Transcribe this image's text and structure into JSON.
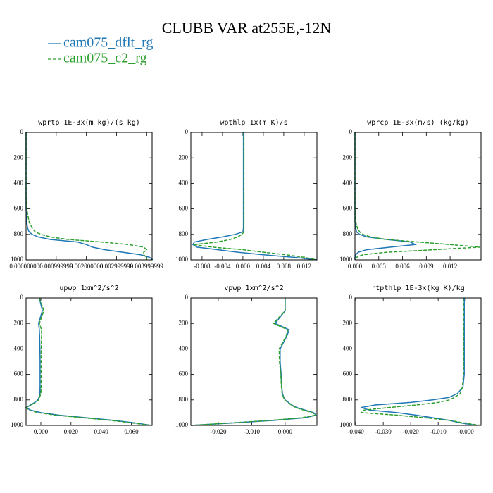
{
  "title": "CLUBB VAR at255E,-12N",
  "chart_data": [
    {
      "type": "line",
      "title": "wprtp  1E-3x(m kg)/(s kg)",
      "levels": [
        0,
        100,
        200,
        250,
        300,
        400,
        500,
        600,
        700,
        750,
        780,
        800,
        820,
        840,
        860,
        880,
        900,
        920,
        940,
        960,
        980,
        1000
      ],
      "series": [
        {
          "name": "cam075_dflt_rg",
          "color": "#1f77b4",
          "linestyle": "solid",
          "values": [
            0,
            0,
            0,
            0,
            0,
            0,
            0,
            0,
            2e-05,
            5e-05,
            0.0001,
            0.0002,
            0.0004,
            0.0008,
            0.0017,
            0.002,
            0.0022,
            0.0026,
            0.0032,
            0.0038,
            0.0041,
            0.0042
          ]
        },
        {
          "name": "cam075_c2_rg",
          "color": "#2ca02c",
          "linestyle": "dashed",
          "values": [
            0,
            0,
            0,
            0,
            0,
            0,
            0,
            2e-05,
            0.0001,
            0.0002,
            0.0003,
            0.0005,
            0.0008,
            0.0014,
            0.0025,
            0.0034,
            0.0039,
            0.004,
            0.0039,
            0.0039,
            0.004,
            0.004
          ]
        }
      ],
      "xlim": [
        0,
        0.00418
      ],
      "xticks": [
        {
          "value": 0,
          "label": "0.000000000"
        },
        0.000999999,
        {
          "value": 0.002,
          "label": "0.002000000"
        },
        0.002999999,
        0.003999999
      ],
      "ylim": [
        1000,
        0
      ],
      "yticks": [
        0,
        200,
        400,
        600,
        800,
        1000
      ]
    },
    {
      "type": "line",
      "title": "wpthlp  1x(m K)/s",
      "levels": [
        0,
        100,
        200,
        250,
        300,
        400,
        500,
        600,
        700,
        750,
        780,
        800,
        820,
        840,
        860,
        880,
        900,
        920,
        940,
        960,
        980,
        1000
      ],
      "series": [
        {
          "name": "cam075_dflt_rg",
          "color": "#1f77b4",
          "linestyle": "solid",
          "values": [
            0.0001,
            0.0001,
            0.0001,
            0.0001,
            0.0001,
            0.0001,
            0.0001,
            0.0001,
            0.0001,
            0.0001,
            0,
            -0.0015,
            -0.004,
            -0.007,
            -0.0095,
            -0.0098,
            -0.009,
            -0.005,
            -0.001,
            0.004,
            0.01,
            0.0145
          ]
        },
        {
          "name": "cam075_c2_rg",
          "color": "#2ca02c",
          "linestyle": "dashed",
          "values": [
            0.0002,
            0.0002,
            0.0002,
            0.0002,
            0.0002,
            0.0002,
            0.0002,
            0.0002,
            0.0002,
            0.0002,
            0.0002,
            -0.0002,
            -0.001,
            -0.0025,
            -0.005,
            -0.0097,
            -0.006,
            0,
            0.004,
            0.0085,
            0.012,
            0.0145
          ]
        }
      ],
      "xlim": [
        -0.0102,
        0.0145
      ],
      "xticks": [
        -0.008,
        -0.004,
        {
          "value": 0,
          "label": "0.000"
        },
        0.004,
        0.008,
        0.012
      ],
      "ylim": [
        1000,
        0
      ],
      "yticks": [
        0,
        200,
        400,
        600,
        800,
        1000
      ]
    },
    {
      "type": "line",
      "title": "wprcp  1E-3x(m/s) (kg/kg)",
      "levels": [
        0,
        100,
        200,
        250,
        300,
        400,
        500,
        600,
        700,
        750,
        780,
        800,
        820,
        840,
        860,
        880,
        900,
        920,
        940,
        960,
        980,
        1000
      ],
      "series": [
        {
          "name": "cam075_dflt_rg",
          "color": "#1f77b4",
          "linestyle": "solid",
          "values": [
            0,
            0,
            0,
            0,
            0,
            0,
            0,
            0,
            0,
            0.0001,
            0.0002,
            0.0006,
            0.0015,
            0.004,
            0.007,
            0.0076,
            0.0045,
            0.0015,
            0.0004,
            0.0001,
            0,
            0
          ]
        },
        {
          "name": "cam075_c2_rg",
          "color": "#2ca02c",
          "linestyle": "dashed",
          "values": [
            0,
            0,
            0,
            0,
            0,
            0,
            0,
            0,
            0.0001,
            0.0003,
            0.0006,
            0.001,
            0.002,
            0.004,
            0.008,
            0.012,
            0.0158,
            0.01,
            0.004,
            0.001,
            0.0002,
            0
          ]
        }
      ],
      "xlim": [
        0,
        0.0159
      ],
      "xticks": [
        {
          "value": 0,
          "label": "0.000"
        },
        0.003,
        0.006,
        0.009,
        0.012
      ],
      "ylim": [
        1000,
        0
      ],
      "yticks": [
        0,
        200,
        400,
        600,
        800,
        1000
      ]
    },
    {
      "type": "line",
      "title": "upwp  1xm^2/s^2",
      "levels": [
        0,
        100,
        200,
        250,
        300,
        400,
        500,
        600,
        700,
        750,
        780,
        800,
        820,
        840,
        860,
        880,
        900,
        920,
        940,
        960,
        980,
        1000
      ],
      "series": [
        {
          "name": "cam075_dflt_rg",
          "color": "#1f77b4",
          "linestyle": "solid",
          "values": [
            -0.001,
            0.001,
            -0.0015,
            -0.001,
            -0.0008,
            -0.0006,
            -0.0005,
            -0.0005,
            -0.0005,
            -0.0006,
            -0.0012,
            -0.002,
            -0.004,
            -0.007,
            -0.0095,
            -0.007,
            0,
            0.012,
            0.03,
            0.048,
            0.062,
            0.0735
          ]
        },
        {
          "name": "cam075_c2_rg",
          "color": "#2ca02c",
          "linestyle": "dashed",
          "values": [
            -0.001,
            0.002,
            -0.001,
            0.0005,
            0.0005,
            0.0003,
            0.0002,
            0.0002,
            0.0002,
            0,
            -0.0008,
            -0.0015,
            -0.0035,
            -0.0065,
            -0.0098,
            -0.008,
            -0.002,
            0.01,
            0.028,
            0.046,
            0.06,
            0.0735
          ]
        }
      ],
      "xlim": [
        -0.0098,
        0.0738
      ],
      "xticks": [
        {
          "value": 0,
          "label": "0.000"
        },
        {
          "value": 0.02,
          "label": "0.020"
        },
        {
          "value": 0.04,
          "label": "0.040"
        },
        {
          "value": 0.06,
          "label": "0.060"
        }
      ],
      "ylim": [
        1000,
        0
      ],
      "yticks": [
        0,
        200,
        400,
        600,
        800,
        1000
      ]
    },
    {
      "type": "line",
      "title": "vpwp  1xm^2/s^2",
      "levels": [
        0,
        100,
        200,
        250,
        300,
        400,
        500,
        600,
        700,
        750,
        780,
        800,
        820,
        840,
        860,
        880,
        900,
        920,
        940,
        960,
        980,
        1000
      ],
      "series": [
        {
          "name": "cam075_dflt_rg",
          "color": "#1f77b4",
          "linestyle": "solid",
          "values": [
            0,
            0,
            -0.003,
            0.0012,
            0.0005,
            -0.0015,
            -0.0015,
            -0.0012,
            -0.001,
            -0.0008,
            -0.0004,
            0,
            0.001,
            0.002,
            0.0035,
            0.006,
            0.0085,
            0.0092,
            0.006,
            -0.003,
            -0.015,
            -0.0282
          ]
        },
        {
          "name": "cam075_c2_rg",
          "color": "#2ca02c",
          "linestyle": "dashed",
          "values": [
            0,
            0,
            -0.0035,
            0.0008,
            0.0003,
            -0.0018,
            -0.0017,
            -0.0013,
            -0.0011,
            -0.0009,
            -0.0005,
            -0.0001,
            0.0008,
            0.0018,
            0.0032,
            0.0055,
            0.0082,
            0.009,
            0.005,
            -0.004,
            -0.016,
            -0.0282
          ]
        }
      ],
      "xlim": [
        -0.0282,
        0.0095
      ],
      "xticks": [
        {
          "value": -0.02,
          "label": "-0.020"
        },
        {
          "value": -0.01,
          "label": "-0.010"
        },
        {
          "value": 0,
          "label": "0.000"
        }
      ],
      "ylim": [
        1000,
        0
      ],
      "yticks": [
        0,
        200,
        400,
        600,
        800,
        1000
      ]
    },
    {
      "type": "line",
      "title": "rtpthlp  1E-3x(kg K)/kg",
      "levels": [
        0,
        100,
        200,
        250,
        300,
        400,
        500,
        600,
        700,
        750,
        780,
        800,
        820,
        840,
        860,
        880,
        900,
        920,
        940,
        960,
        980,
        1000
      ],
      "series": [
        {
          "name": "cam075_dflt_rg",
          "color": "#1f77b4",
          "linestyle": "solid",
          "values": [
            -0.0005,
            -0.0005,
            -0.0005,
            -0.0005,
            -0.0005,
            -0.0005,
            -0.0005,
            -0.0005,
            -0.001,
            -0.003,
            -0.006,
            -0.012,
            -0.02,
            -0.033,
            -0.038,
            -0.035,
            -0.025,
            -0.018,
            -0.012,
            -0.006,
            -0.002,
            0.004
          ]
        },
        {
          "name": "cam075_c2_rg",
          "color": "#2ca02c",
          "linestyle": "dashed",
          "values": [
            -0.0008,
            -0.0008,
            -0.0008,
            -0.0008,
            -0.0008,
            -0.0008,
            -0.0008,
            -0.0008,
            -0.0012,
            -0.002,
            -0.004,
            -0.006,
            -0.01,
            -0.018,
            -0.028,
            -0.037,
            -0.038,
            -0.025,
            -0.015,
            -0.006,
            -0.001,
            0.0056
          ]
        }
      ],
      "xlim": [
        -0.0403,
        0.0056
      ],
      "xticks": [
        {
          "value": -0.04,
          "label": "-0.040"
        },
        {
          "value": -0.03,
          "label": "-0.030"
        },
        {
          "value": -0.02,
          "label": "-0.020"
        },
        {
          "value": -0.01,
          "label": "-0.010"
        },
        {
          "value": 0,
          "label": "-0.000"
        }
      ],
      "ylim": [
        1000,
        0
      ],
      "yticks": [
        0,
        200,
        400,
        600,
        800,
        1000
      ]
    }
  ]
}
